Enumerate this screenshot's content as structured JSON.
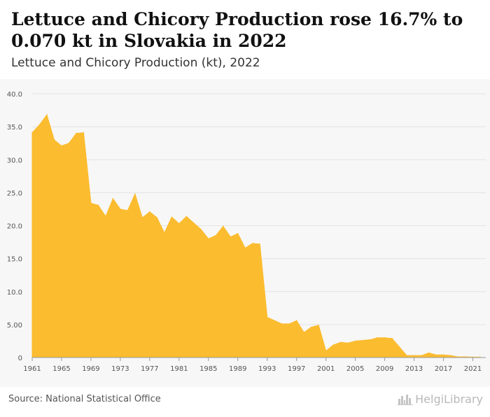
{
  "header": {
    "title": "Lettuce and Chicory Production rose 16.7% to 0.070 kt in Slovakia in 2022",
    "subtitle": "Lettuce and Chicory Production (kt), 2022"
  },
  "footer": {
    "source": "Source: National Statistical Office",
    "brand": "HelgiLibrary",
    "brand_icon": "city-skyline-icon"
  },
  "colors": {
    "area": "#fbbc2f",
    "grid": "#e3e3e3",
    "axis": "#9a9a9a",
    "background": "#f7f7f7"
  },
  "chart_data": {
    "type": "area",
    "x": [
      1961,
      1962,
      1963,
      1964,
      1965,
      1966,
      1967,
      1968,
      1969,
      1970,
      1971,
      1972,
      1973,
      1974,
      1975,
      1976,
      1977,
      1978,
      1979,
      1980,
      1981,
      1982,
      1983,
      1984,
      1985,
      1986,
      1987,
      1988,
      1989,
      1990,
      1991,
      1992,
      1993,
      1994,
      1995,
      1996,
      1997,
      1998,
      1999,
      2000,
      2001,
      2002,
      2003,
      2004,
      2005,
      2006,
      2007,
      2008,
      2009,
      2010,
      2011,
      2012,
      2013,
      2014,
      2015,
      2016,
      2017,
      2018,
      2019,
      2020,
      2021,
      2022
    ],
    "values": [
      34.1,
      35.3,
      36.8,
      33.0,
      32.1,
      32.5,
      34.0,
      34.1,
      23.4,
      23.1,
      21.4,
      24.1,
      22.5,
      22.3,
      24.8,
      21.2,
      22.1,
      21.2,
      18.9,
      21.3,
      20.3,
      21.4,
      20.4,
      19.4,
      18.0,
      18.5,
      19.9,
      18.3,
      18.8,
      16.6,
      17.3,
      17.2,
      6.1,
      5.6,
      5.1,
      5.1,
      5.6,
      3.8,
      4.6,
      4.9,
      1.0,
      1.9,
      2.3,
      2.2,
      2.5,
      2.6,
      2.7,
      3.0,
      3.0,
      2.9,
      1.6,
      0.3,
      0.3,
      0.3,
      0.7,
      0.4,
      0.4,
      0.3,
      0.1,
      0.1,
      0.06,
      0.07
    ],
    "x_ticks": [
      "1961",
      "1965",
      "1969",
      "1973",
      "1977",
      "1981",
      "1985",
      "1989",
      "1993",
      "1997",
      "2001",
      "2005",
      "2009",
      "2013",
      "2017",
      "2021"
    ],
    "y_ticks": [
      "0",
      "5.00",
      "10.0",
      "15.0",
      "20.0",
      "25.0",
      "30.0",
      "35.0",
      "40.0"
    ],
    "ylim": [
      0,
      40
    ],
    "xlim": [
      1961,
      2022
    ],
    "grid": true,
    "legend": "none"
  }
}
